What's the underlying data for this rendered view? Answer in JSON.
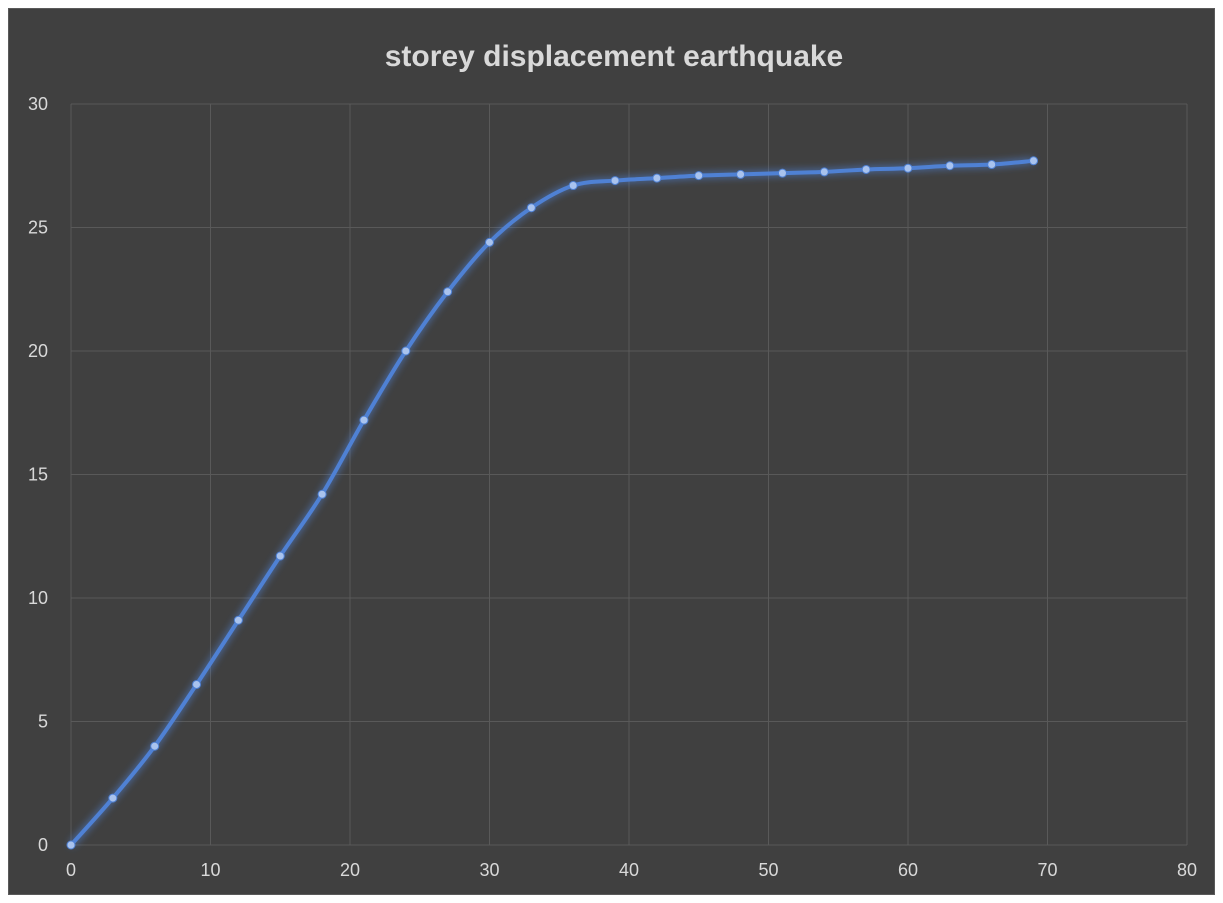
{
  "chart_data": {
    "type": "scatter",
    "title": "storey displacement earthquake",
    "xlabel": "",
    "ylabel": "",
    "xlim": [
      0,
      80
    ],
    "ylim": [
      0,
      30
    ],
    "x_ticks": [
      "0",
      "10",
      "20",
      "30",
      "40",
      "50",
      "60",
      "70",
      "80"
    ],
    "y_ticks": [
      "0",
      "5",
      "10",
      "15",
      "20",
      "25",
      "30"
    ],
    "grid": true,
    "smooth_lines": true,
    "markers": true,
    "series": [
      {
        "color": "#4f81d4",
        "x": [
          0,
          3,
          6,
          9,
          12,
          15,
          18,
          21,
          24,
          27,
          30,
          33,
          36,
          39,
          42,
          45,
          48,
          51,
          54,
          57,
          60,
          63,
          66,
          69
        ],
        "y": [
          0,
          1.9,
          4.0,
          6.5,
          9.1,
          11.7,
          14.2,
          17.2,
          20.0,
          22.4,
          24.4,
          25.8,
          26.7,
          26.9,
          27.0,
          27.1,
          27.15,
          27.2,
          27.25,
          27.35,
          27.4,
          27.5,
          27.55,
          27.7
        ]
      }
    ]
  }
}
